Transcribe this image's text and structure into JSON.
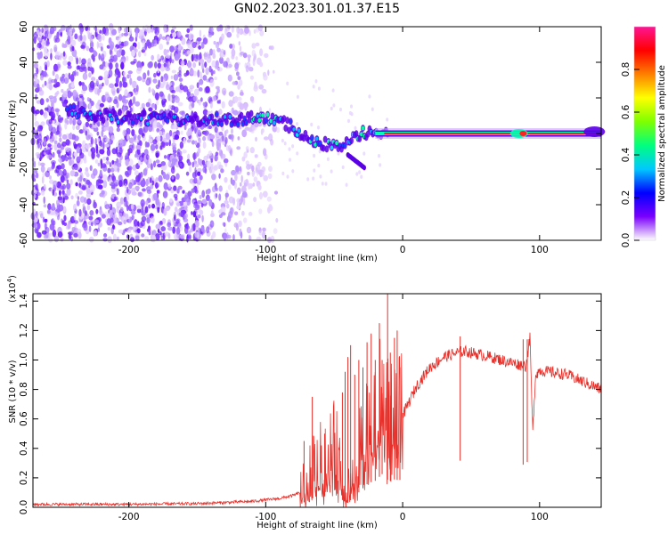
{
  "title": "GN02.2023.301.01.37.E15",
  "colors": {
    "snr_line": "#e8302a",
    "ridge": "#7b00ff",
    "ridge_core": "#00ffb0",
    "tone": "#ff2020"
  },
  "chart_data": [
    {
      "type": "heatmap",
      "name": "spectrogram",
      "xlabel": "Height of straight line (km)",
      "ylabel": "Frequency (Hz)",
      "xlim": [
        -270,
        145
      ],
      "ylim": [
        -60,
        60
      ],
      "xticks": [
        -200,
        -100,
        0,
        100
      ],
      "xtick_labels": [
        "-200",
        "-100",
        "0",
        "100"
      ],
      "yticks": [
        -60,
        -40,
        -20,
        0,
        20,
        40,
        60
      ],
      "ytick_labels": [
        "-60",
        "-40",
        "-20",
        "0",
        "20",
        "40",
        "60"
      ],
      "colorbar": {
        "label": "Normalized spectral amplitude",
        "range": [
          0.0,
          1.0
        ],
        "ticks": [
          0.0,
          0.2,
          0.4,
          0.6,
          0.8
        ],
        "tick_labels": [
          "0.0",
          "0.2",
          "0.4",
          "0.6",
          "0.8"
        ],
        "colormap": [
          "#ffffff",
          "#7a00ff",
          "#0000ff",
          "#00c8ff",
          "#00ff7f",
          "#7fff00",
          "#ffff00",
          "#ff7f00",
          "#ff0000",
          "#ff1493"
        ]
      },
      "ridge": {
        "x": [
          -245,
          -230,
          -200,
          -170,
          -150,
          -120,
          -100,
          -90,
          -80,
          -70,
          -60,
          -50,
          -40,
          -30,
          -20,
          -10,
          0,
          50,
          90,
          145
        ],
        "freq": [
          13,
          11,
          9,
          8,
          8,
          8,
          9,
          8,
          3,
          -2,
          -5,
          -7,
          -5,
          0,
          1,
          1,
          0,
          0,
          0,
          0
        ]
      }
    },
    {
      "type": "line",
      "name": "snr",
      "xlabel": "Height of straight line (km)",
      "ylabel": "SNR (10 * v/v)",
      "multiplier": "(x10^4)",
      "xlim": [
        -270,
        145
      ],
      "ylim": [
        0,
        1.45
      ],
      "xticks": [
        -200,
        -100,
        0,
        100
      ],
      "xtick_labels": [
        "-200",
        "-100",
        "0",
        "100"
      ],
      "yticks": [
        0.0,
        0.2,
        0.4,
        0.6,
        0.8,
        1.0,
        1.2,
        1.4
      ],
      "ytick_labels": [
        "0.0",
        "0.2",
        "0.4",
        "0.6",
        "0.8",
        "1.0",
        "1.2",
        "1.4"
      ],
      "series": [
        {
          "x": [
            -270,
            -200,
            -150,
            -110,
            -90,
            -80,
            -70,
            -62,
            -55,
            -50,
            -45,
            -40,
            -35,
            -30,
            -25,
            -20,
            -15,
            -12,
            -10,
            -8,
            -5,
            0,
            10,
            20,
            30,
            40,
            45,
            60,
            80,
            90,
            93,
            95,
            97,
            100,
            120,
            145
          ],
          "y": [
            0.02,
            0.02,
            0.025,
            0.04,
            0.06,
            0.08,
            0.12,
            0.3,
            0.28,
            0.45,
            0.18,
            0.1,
            0.25,
            0.4,
            0.55,
            0.6,
            0.75,
            0.7,
            0.55,
            0.65,
            0.62,
            0.62,
            0.82,
            0.95,
            1.02,
            1.05,
            1.06,
            1.03,
            0.98,
            0.96,
            1.15,
            0.5,
            0.9,
            0.93,
            0.9,
            0.8
          ]
        }
      ],
      "spikes": [
        {
          "x": -72,
          "y": 0.45
        },
        {
          "x": -66,
          "y": 0.75
        },
        {
          "x": -57,
          "y": 0.5
        },
        {
          "x": -44,
          "y": 0.78
        },
        {
          "x": -42,
          "y": 0.92
        },
        {
          "x": -40,
          "y": 1.02
        },
        {
          "x": -38,
          "y": 1.1
        },
        {
          "x": -35,
          "y": 0.9
        },
        {
          "x": -32,
          "y": 1.0
        },
        {
          "x": -29,
          "y": 0.95
        },
        {
          "x": -26,
          "y": 1.12
        },
        {
          "x": -23,
          "y": 1.18
        },
        {
          "x": -20,
          "y": 1.0
        },
        {
          "x": -17,
          "y": 1.25
        },
        {
          "x": -15,
          "y": 1.0
        },
        {
          "x": -11,
          "y": 1.45
        },
        {
          "x": -9,
          "y": 1.05
        },
        {
          "x": -6,
          "y": 1.15
        },
        {
          "x": -4,
          "y": 1.2
        },
        {
          "x": -2,
          "y": 0.95
        },
        {
          "x": 42,
          "y": 1.16
        },
        {
          "x": 88,
          "y": 1.14
        },
        {
          "x": 91,
          "y": 1.14
        }
      ]
    }
  ]
}
